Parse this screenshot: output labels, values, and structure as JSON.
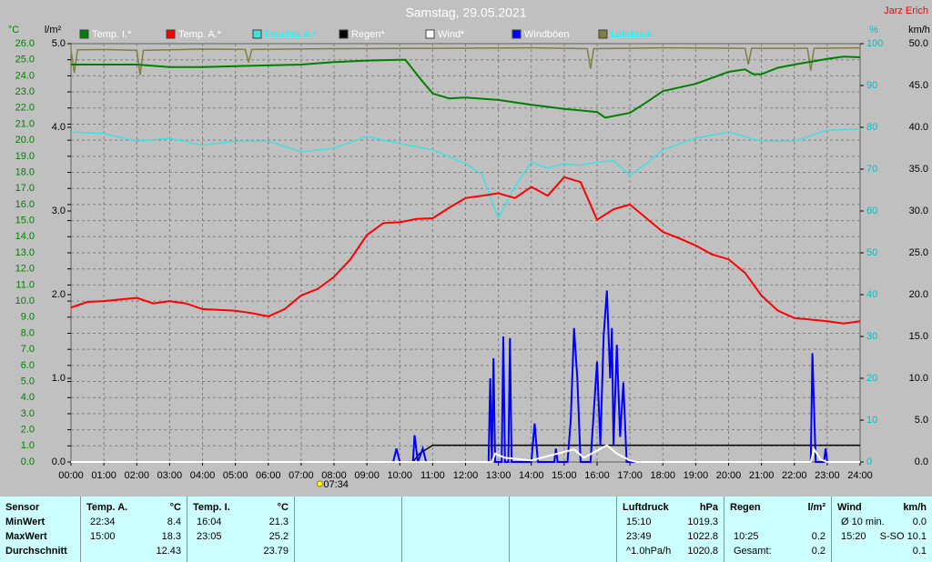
{
  "chart_data": {
    "type": "line",
    "title": "Samstag, 29.05.2021",
    "author": "Jarz Erich",
    "ylabel": "°C",
    "y2label": "l/m²",
    "y3label": "%",
    "y4label": "km/h",
    "grid": true,
    "xlim": [
      0,
      24
    ],
    "xticks": [
      {
        "value": 0,
        "label": "00:00"
      },
      {
        "value": 1,
        "label": "01:00"
      },
      {
        "value": 2,
        "label": "02:00"
      },
      {
        "value": 3,
        "label": "03:00"
      },
      {
        "value": 4,
        "label": "04:00"
      },
      {
        "value": 5,
        "label": "05:00"
      },
      {
        "value": 6,
        "label": "06:00"
      },
      {
        "value": 7,
        "label": "07:00"
      },
      {
        "value": 8,
        "label": "08:00"
      },
      {
        "value": 9,
        "label": "09:00"
      },
      {
        "value": 10,
        "label": "10:00"
      },
      {
        "value": 11,
        "label": "11:00"
      },
      {
        "value": 12,
        "label": "12:00"
      },
      {
        "value": 13,
        "label": "13:00"
      },
      {
        "value": 14,
        "label": "14:00"
      },
      {
        "value": 15,
        "label": "15:00"
      },
      {
        "value": 16,
        "label": "16:00"
      },
      {
        "value": 17,
        "label": "17:00"
      },
      {
        "value": 18,
        "label": "18:00"
      },
      {
        "value": 19,
        "label": "19:00"
      },
      {
        "value": 20,
        "label": "20:00"
      },
      {
        "value": 21,
        "label": "21:00"
      },
      {
        "value": 22,
        "label": "22:00"
      },
      {
        "value": 23,
        "label": "23:00"
      },
      {
        "value": 24,
        "label": "24:00"
      }
    ],
    "ylim": [
      0,
      26
    ],
    "yticks": [
      {
        "value": 0,
        "label": "0.0"
      },
      {
        "value": 1,
        "label": "1.0"
      },
      {
        "value": 2,
        "label": "2.0"
      },
      {
        "value": 3,
        "label": "3.0"
      },
      {
        "value": 4,
        "label": "4.0"
      },
      {
        "value": 5,
        "label": "5.0"
      },
      {
        "value": 6,
        "label": "6.0"
      },
      {
        "value": 7,
        "label": "7.0"
      },
      {
        "value": 8,
        "label": "8.0"
      },
      {
        "value": 9,
        "label": "9.0"
      },
      {
        "value": 10,
        "label": "10.0"
      },
      {
        "value": 11,
        "label": "11.0"
      },
      {
        "value": 12,
        "label": "12.0"
      },
      {
        "value": 13,
        "label": "13.0"
      },
      {
        "value": 14,
        "label": "14.0"
      },
      {
        "value": 15,
        "label": "15.0"
      },
      {
        "value": 16,
        "label": "16.0"
      },
      {
        "value": 17,
        "label": "17.0"
      },
      {
        "value": 18,
        "label": "18.0"
      },
      {
        "value": 19,
        "label": "19.0"
      },
      {
        "value": 20,
        "label": "20.0"
      },
      {
        "value": 21,
        "label": "21.0"
      },
      {
        "value": 22,
        "label": "22.0"
      },
      {
        "value": 23,
        "label": "23.0"
      },
      {
        "value": 24,
        "label": "24.0"
      },
      {
        "value": 25,
        "label": "25.0"
      },
      {
        "value": 26,
        "label": "26.0"
      }
    ],
    "y2lim": [
      0,
      5
    ],
    "y2ticks": [
      {
        "value": 0,
        "label": "0.0"
      },
      {
        "value": 1,
        "label": "1.0"
      },
      {
        "value": 2,
        "label": "2.0"
      },
      {
        "value": 3,
        "label": "3.0"
      },
      {
        "value": 4,
        "label": "4.0"
      },
      {
        "value": 5,
        "label": "5.0"
      }
    ],
    "y3lim": [
      0,
      100
    ],
    "y3ticks": [
      0,
      10,
      20,
      30,
      40,
      50,
      60,
      70,
      80,
      90,
      100
    ],
    "y4lim": [
      0,
      50
    ],
    "y4ticks": [
      {
        "value": 0,
        "label": "0.0"
      },
      {
        "value": 5,
        "label": "5.0"
      },
      {
        "value": 10,
        "label": "10.0"
      },
      {
        "value": 15,
        "label": "15.0"
      },
      {
        "value": 20,
        "label": "20.0"
      },
      {
        "value": 25,
        "label": "25.0"
      },
      {
        "value": 30,
        "label": "30.0"
      },
      {
        "value": 35,
        "label": "35.0"
      },
      {
        "value": 40,
        "label": "40.0"
      },
      {
        "value": 45,
        "label": "45.0"
      },
      {
        "value": 50,
        "label": "50.0"
      }
    ],
    "annotation": {
      "value": 7.567,
      "label": "07:34"
    },
    "series": [
      {
        "name": "Temp. I.*",
        "color": "#008000",
        "label_color": "#ffffff",
        "axis": "y",
        "x": [
          0,
          2,
          3,
          4,
          5,
          7,
          8,
          9,
          10,
          10.17,
          10.67,
          11,
          11.5,
          12,
          13,
          14,
          15,
          16,
          16.25,
          17,
          17.5,
          18,
          19,
          20,
          20.5,
          20.75,
          21,
          21.5,
          22,
          23,
          23.5,
          24
        ],
        "values": [
          24.7,
          24.7,
          24.55,
          24.55,
          24.6,
          24.7,
          24.85,
          24.95,
          25.0,
          25.0,
          23.7,
          22.9,
          22.6,
          22.65,
          22.5,
          22.2,
          21.95,
          21.75,
          21.4,
          21.7,
          22.35,
          23.05,
          23.5,
          24.25,
          24.4,
          24.1,
          24.1,
          24.5,
          24.7,
          25.05,
          25.2,
          25.15
        ]
      },
      {
        "name": "Temp. A.*",
        "color": "#ff0000",
        "label_color": "#ffffff",
        "axis": "y",
        "x": [
          0,
          0.5,
          1,
          2,
          2.5,
          3,
          3.5,
          4,
          5,
          5.5,
          6,
          6.5,
          7,
          7.5,
          8,
          8.5,
          9,
          9.5,
          10,
          10.5,
          11,
          11.5,
          12,
          12.5,
          13,
          13.5,
          14,
          14.5,
          15,
          15.5,
          16,
          16.5,
          17,
          17.5,
          18,
          18.5,
          19,
          19.5,
          20,
          20.5,
          21,
          21.5,
          22,
          23,
          23.5,
          24
        ],
        "values": [
          9.6,
          9.95,
          10.0,
          10.2,
          9.85,
          10.0,
          9.85,
          9.5,
          9.4,
          9.25,
          9.05,
          9.5,
          10.35,
          10.75,
          11.5,
          12.6,
          14.1,
          14.85,
          14.9,
          15.1,
          15.15,
          15.8,
          16.4,
          16.55,
          16.7,
          16.4,
          17.1,
          16.55,
          17.7,
          17.4,
          15.05,
          15.7,
          16.0,
          15.15,
          14.3,
          13.9,
          13.45,
          12.9,
          12.6,
          11.75,
          10.35,
          9.4,
          8.95,
          8.75,
          8.6,
          8.75
        ]
      },
      {
        "name": "Feuchte A.*",
        "color": "#40e0e0",
        "label_color": "#00ffff",
        "axis": "y3",
        "x": [
          0,
          1,
          2,
          3,
          4,
          5,
          6,
          7,
          8,
          9,
          10,
          11,
          12,
          12.5,
          13,
          13.5,
          14,
          14.5,
          15,
          15.5,
          16,
          16.5,
          17,
          17.5,
          18,
          19,
          20,
          21,
          22,
          23,
          24
        ],
        "values": [
          78.9,
          78.5,
          76.7,
          77.4,
          75.7,
          76.7,
          76.7,
          74.1,
          75.0,
          77.8,
          76.1,
          74.6,
          71.3,
          68.7,
          58.3,
          65.9,
          71.7,
          70.2,
          71.3,
          70.9,
          71.7,
          72.0,
          68.5,
          71.3,
          74.6,
          77.4,
          78.9,
          76.7,
          76.7,
          79.3,
          79.6
        ]
      },
      {
        "name": "Regen*",
        "color": "#000000",
        "label_color": "#ffffff",
        "axis": "y2",
        "x": [
          0,
          10.4,
          10.6,
          11,
          24
        ],
        "values": [
          0,
          0,
          0.1,
          0.2,
          0.2
        ]
      },
      {
        "name": "Wind*",
        "color": "#ffffff",
        "label_color": "#ffffff",
        "axis": "y4",
        "x": [
          0,
          12.8,
          12.9,
          13.2,
          14,
          15.3,
          15.6,
          16.3,
          16.6,
          17,
          17.2,
          22.5,
          22.6,
          22.8,
          23,
          24
        ],
        "values": [
          0,
          0,
          1,
          0.5,
          0.2,
          1.5,
          0.5,
          2,
          1,
          0.2,
          0,
          0,
          1.5,
          0.3,
          0,
          0
        ]
      },
      {
        "name": "Windböen",
        "color": "#0000ff",
        "label_color": "#ffffff",
        "axis": "y4",
        "x": [
          0,
          9.8,
          9.9,
          10,
          10.4,
          10.45,
          10.55,
          10.7,
          10.8,
          12.7,
          12.75,
          12.8,
          12.85,
          12.9,
          13.1,
          13.15,
          13.2,
          13.3,
          13.35,
          13.4,
          14,
          14.1,
          14.2,
          14.7,
          14.75,
          14.8,
          15.1,
          15.2,
          15.3,
          15.4,
          15.5,
          15.8,
          15.9,
          16,
          16.1,
          16.2,
          16.3,
          16.4,
          16.45,
          16.5,
          16.6,
          16.7,
          16.8,
          16.9,
          22.5,
          22.55,
          22.65,
          22.9,
          22.95,
          23,
          24
        ],
        "values": [
          0,
          0,
          1.6,
          0,
          0,
          3.2,
          0,
          1.6,
          0,
          0,
          10,
          0,
          12.4,
          0,
          0,
          15,
          0,
          0,
          14.8,
          0,
          0,
          4.6,
          0,
          0,
          1.6,
          0,
          0,
          5,
          16,
          10,
          0,
          0,
          6,
          12,
          2,
          15,
          20.5,
          10,
          16,
          2,
          14,
          3,
          9.5,
          0,
          0,
          13,
          0,
          0,
          1.6,
          0,
          0
        ]
      },
      {
        "name": "Luftdruck",
        "color": "#808040",
        "label_color": "#00ffff",
        "axis": "y3",
        "x": [
          0,
          0.1,
          0.2,
          1,
          2,
          2.1,
          2.2,
          4,
          5.3,
          5.4,
          5.5,
          8,
          11,
          14,
          15.7,
          15.8,
          15.9,
          18,
          20.5,
          20.6,
          20.7,
          22.4,
          22.5,
          22.6,
          24
        ],
        "values": [
          98.5,
          93,
          98.5,
          98.6,
          98.4,
          92.5,
          98.4,
          98.7,
          98.6,
          95.5,
          98.6,
          98.8,
          98.9,
          99,
          98.8,
          94,
          98.8,
          99,
          98.9,
          95,
          98.9,
          98.9,
          93.5,
          98.9,
          99
        ]
      }
    ]
  },
  "footer": {
    "columns": [
      {
        "header": [
          "Sensor",
          null
        ],
        "rows": [
          [
            "MinWert",
            null
          ],
          [
            "MaxWert",
            null
          ],
          [
            "Durchschnitt",
            null
          ]
        ]
      },
      {
        "header": [
          "Temp. A.",
          "°C"
        ],
        "rows": [
          [
            "22:34",
            "8.4"
          ],
          [
            "15:00",
            "18.3"
          ],
          [
            null,
            "12.43"
          ]
        ]
      },
      {
        "header": [
          "Temp. I.",
          "°C"
        ],
        "rows": [
          [
            "16:04",
            "21.3"
          ],
          [
            "23:05",
            "25.2"
          ],
          [
            null,
            "23.79"
          ]
        ]
      },
      {
        "header": [
          "Luftdruck",
          "hPa"
        ],
        "rows": [
          [
            "15:10",
            "1019.3"
          ],
          [
            "23:49",
            "1022.8"
          ],
          [
            "^1.0hPa/h",
            "1020.8"
          ]
        ]
      },
      {
        "header": [
          "Regen",
          "l/m²"
        ],
        "rows": [
          [
            null,
            null
          ],
          [
            "10:25",
            "0.2"
          ],
          [
            "Gesamt:",
            "0.2"
          ]
        ]
      },
      {
        "header": [
          "Wind",
          "km/h"
        ],
        "rows": [
          [
            "Ø 10 min.",
            "0.0"
          ],
          [
            "15:20",
            "S-SO 10.1"
          ],
          [
            null,
            "0.1"
          ]
        ]
      }
    ]
  }
}
